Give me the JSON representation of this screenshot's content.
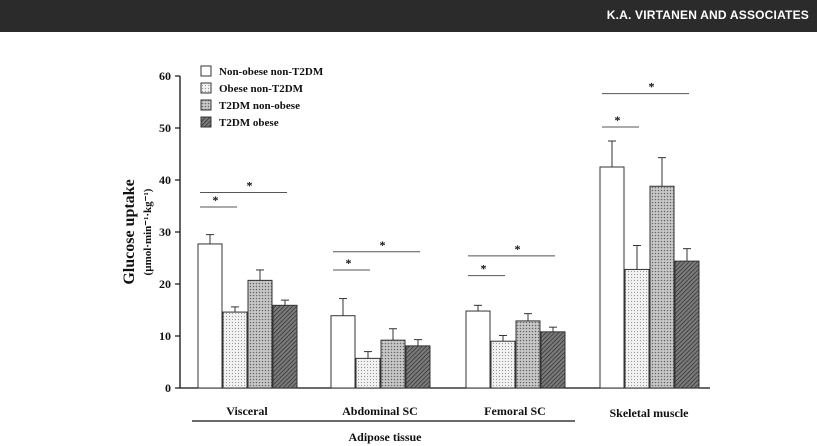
{
  "header": {
    "text": "K.A. VIRTANEN AND ASSOCIATES"
  },
  "chart_data": {
    "type": "bar",
    "title": "",
    "ylabel": "Glucose uptake",
    "ylabel_units": "(µmol·min⁻¹·kg⁻¹)",
    "ylim": [
      0,
      60
    ],
    "yticks": [
      0,
      10,
      20,
      30,
      40,
      50,
      60
    ],
    "categories": [
      "Visceral",
      "Abdominal SC",
      "Femoral SC",
      "Skeletal muscle"
    ],
    "supergroup_label": "Adipose tissue",
    "supergroup_categories": [
      "Visceral",
      "Abdominal SC",
      "Femoral SC"
    ],
    "significance_marker": "*",
    "legend_position": "top-left",
    "series": [
      {
        "name": "Non-obese non-T2DM",
        "values": [
          27.7,
          13.9,
          14.8,
          42.5
        ],
        "errors": [
          1.8,
          3.3,
          1.1,
          5.0
        ],
        "color": "#ffffff",
        "pattern": "none"
      },
      {
        "name": "Obese non-T2DM",
        "values": [
          14.6,
          5.7,
          9.0,
          22.8
        ],
        "errors": [
          1.0,
          1.3,
          1.1,
          4.6
        ],
        "color": "#e6e6e6",
        "pattern": "fine-dots"
      },
      {
        "name": "T2DM non-obese",
        "values": [
          20.7,
          9.2,
          12.9,
          38.8
        ],
        "errors": [
          2.0,
          2.2,
          1.4,
          5.5
        ],
        "color": "#bdbdbd",
        "pattern": "dots"
      },
      {
        "name": "T2DM obese",
        "values": [
          15.9,
          8.1,
          10.8,
          24.4
        ],
        "errors": [
          1.0,
          1.2,
          0.9,
          2.4
        ],
        "color": "#6e6e6e",
        "pattern": "diagonal"
      }
    ],
    "significance": [
      {
        "category": "Visceral",
        "from": 0,
        "to": 1,
        "y": 34.8
      },
      {
        "category": "Visceral",
        "from": 0,
        "to": 3,
        "y": 37.6
      },
      {
        "category": "Abdominal SC",
        "from": 0,
        "to": 1,
        "y": 22.7
      },
      {
        "category": "Abdominal SC",
        "from": 0,
        "to": 3,
        "y": 26.2
      },
      {
        "category": "Femoral SC",
        "from": 0,
        "to": 1,
        "y": 21.6
      },
      {
        "category": "Femoral SC",
        "from": 0,
        "to": 3,
        "y": 25.4
      },
      {
        "category": "Skeletal muscle",
        "from": 0,
        "to": 1,
        "y": 50.2
      },
      {
        "category": "Skeletal muscle",
        "from": 0,
        "to": 3,
        "y": 56.6
      }
    ]
  }
}
